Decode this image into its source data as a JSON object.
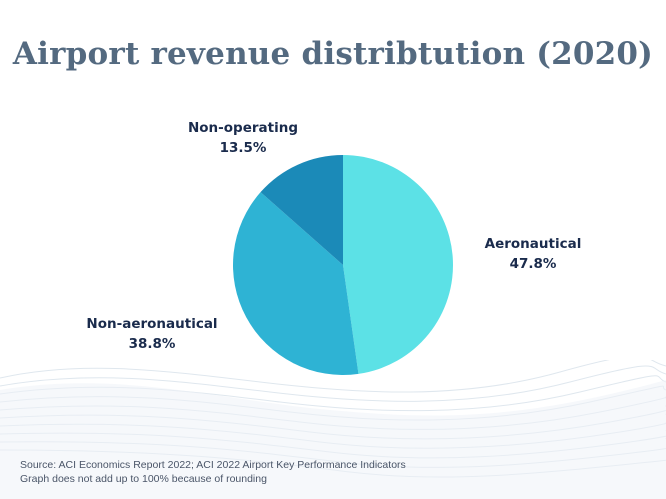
{
  "chart_data": {
    "type": "pie",
    "title": "Airport revenue distribtution (2020)",
    "slices": [
      {
        "name": "Aeronautical",
        "value": 47.8,
        "label": "47.8%",
        "color": "#5ce1e6"
      },
      {
        "name": "Non-aeronautical",
        "value": 38.8,
        "label": "38.8%",
        "color": "#2eb3d4"
      },
      {
        "name": "Non-operating",
        "value": 13.5,
        "label": "13.5%",
        "color": "#1b8ab8"
      }
    ]
  },
  "footer": {
    "source": "Source: ACI Economics Report 2022; ACI 2022 Airport Key Performance Indicators",
    "note": "Graph does not add up to 100% because of rounding"
  }
}
